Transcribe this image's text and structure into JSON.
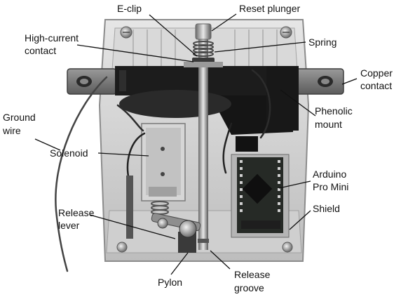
{
  "labels": {
    "eclip": "E-clip",
    "reset_plunger": "Reset plunger",
    "high_current_1": "High-current",
    "high_current_2": "contact",
    "spring": "Spring",
    "copper_1": "Copper",
    "copper_2": "contact",
    "ground_1": "Ground",
    "ground_2": "wire",
    "phenolic_1": "Phenolic",
    "phenolic_2": "mount",
    "solenoid": "Solenoid",
    "arduino_1": "Arduino",
    "arduino_2": "Pro Mini",
    "shield": "Shield",
    "release_lever_1": "Release",
    "release_lever_2": "lever",
    "pylon": "Pylon",
    "release_groove_1": "Release",
    "release_groove_2": "groove"
  },
  "colors": {
    "label_text": "#111111",
    "leader_line": "#111111",
    "enclosure": "#d8d8d8",
    "phenolic": "#1c1c1c",
    "pcb": "#262a26"
  }
}
